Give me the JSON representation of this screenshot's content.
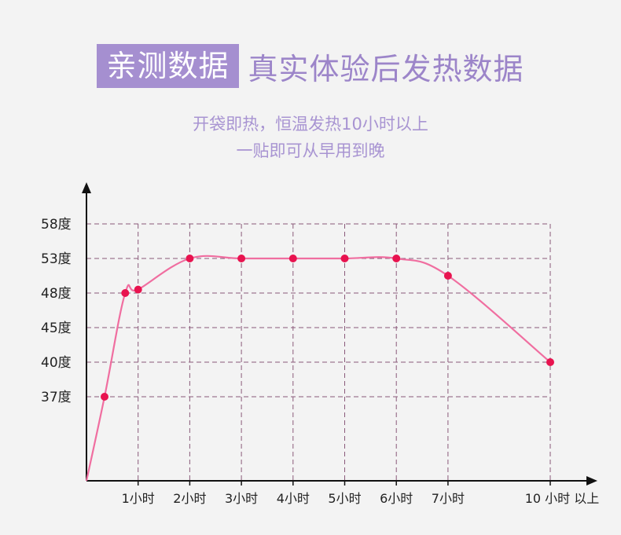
{
  "header": {
    "tag": "亲测数据",
    "title": "真实体验后发热数据",
    "subtitle_line1": "开袋即热，恒温发热10小时以上",
    "subtitle_line2": "一贴即可从早用到晚"
  },
  "colors": {
    "tag_bg": "#a58fd0",
    "title_text": "#9c85c9",
    "subtitle_text": "#a894d2",
    "grid": "#8a5a7a",
    "curve": "#f06ea0",
    "point": "#e8134f"
  },
  "chart_data": {
    "type": "line",
    "title": "",
    "xlabel": "",
    "ylabel": "",
    "grid": true,
    "y_ticks": [
      "37度",
      "40度",
      "45度",
      "48度",
      "53度",
      "58度"
    ],
    "x_ticks": [
      "1小时",
      "2小时",
      "3小时",
      "4小时",
      "5小时",
      "6小时",
      "7小时",
      "10 小时 以上"
    ],
    "series": [
      {
        "points": [
          {
            "x": 0,
            "y": 0
          },
          {
            "x": 0.35,
            "y": 37
          },
          {
            "x": 0.75,
            "y": 48
          },
          {
            "x": 1,
            "y": 48.5
          },
          {
            "x": 2,
            "y": 53
          },
          {
            "x": 3,
            "y": 53
          },
          {
            "x": 4,
            "y": 53
          },
          {
            "x": 5,
            "y": 53
          },
          {
            "x": 6,
            "y": 53
          },
          {
            "x": 7,
            "y": 50.5
          },
          {
            "x": 10,
            "y": 40
          }
        ]
      }
    ]
  }
}
